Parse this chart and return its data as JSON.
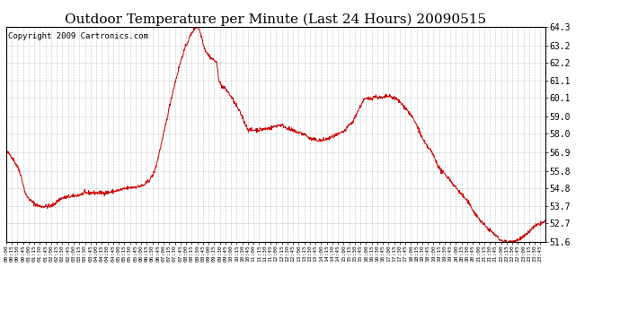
{
  "title": "Outdoor Temperature per Minute (Last 24 Hours) 20090515",
  "copyright_text": "Copyright 2009 Cartronics.com",
  "line_color": "#cc0000",
  "background_color": "#ffffff",
  "plot_bg_color": "#ffffff",
  "grid_color": "#bbbbbb",
  "ylim": [
    51.6,
    64.3
  ],
  "yticks": [
    51.6,
    52.7,
    53.7,
    54.8,
    55.8,
    56.9,
    58.0,
    59.0,
    60.1,
    61.1,
    62.2,
    63.2,
    64.3
  ],
  "title_fontsize": 11,
  "copyright_fontsize": 6.5,
  "xtick_fontsize": 4.5,
  "ytick_fontsize": 7
}
